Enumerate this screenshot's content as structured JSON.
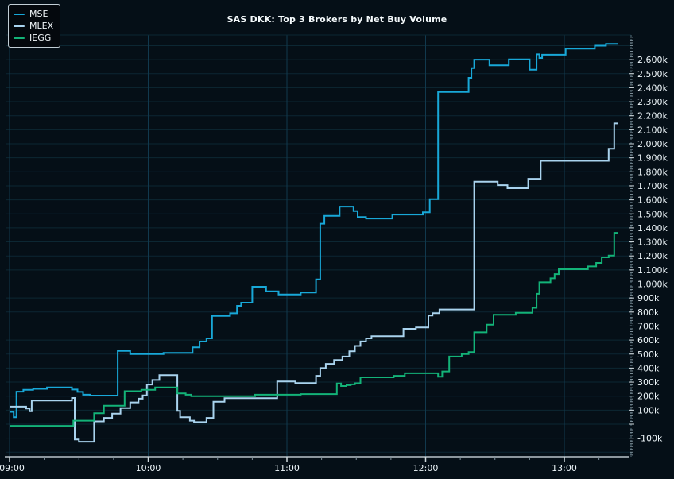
{
  "title": "SAS DKK: Top 3 Brokers by Net Buy Volume",
  "legend": {
    "items": [
      {
        "label": "MSE",
        "color": "#18a8d8"
      },
      {
        "label": "MLEX",
        "color": "#a9d3ee"
      },
      {
        "label": "IEGG",
        "color": "#13b378"
      }
    ]
  },
  "colors": {
    "background": "#050f17",
    "grid_h": "#0c2733",
    "grid_v": "#11394e",
    "axis_line": "#b9c4ca",
    "tick_major": "#cfd8dd",
    "tick_minor": "#7d8f99",
    "tick_label": "#eef6fa",
    "title": "#f5fafc"
  },
  "chart_data": {
    "type": "line",
    "title": "SAS DKK: Top 3 Brokers by Net Buy Volume",
    "step": true,
    "grid": true,
    "legend_position": "upper-left",
    "x_axis": {
      "unit": "time",
      "range_hours": [
        8.97,
        13.45
      ],
      "major_ticks": [
        {
          "t": 9,
          "label": "09:00"
        },
        {
          "t": 10,
          "label": "10:00"
        },
        {
          "t": 11,
          "label": "11:00"
        },
        {
          "t": 12,
          "label": "12:00"
        },
        {
          "t": 13,
          "label": "13:00"
        }
      ],
      "minor_tick_step_hours": 0.25
    },
    "y_axis": {
      "unit": "shares (thousands)",
      "side": "right",
      "min": -240,
      "max": 2775,
      "gridline_step": 100,
      "minor_tick_step": 20,
      "ticks": [
        {
          "value": -100,
          "label": "-100k"
        },
        {
          "value": 0,
          "label": ""
        },
        {
          "value": 100,
          "label": "100k"
        },
        {
          "value": 200,
          "label": "200k"
        },
        {
          "value": 300,
          "label": "300k"
        },
        {
          "value": 400,
          "label": "400k"
        },
        {
          "value": 500,
          "label": "500k"
        },
        {
          "value": 600,
          "label": "600k"
        },
        {
          "value": 700,
          "label": "700k"
        },
        {
          "value": 800,
          "label": "800k"
        },
        {
          "value": 900,
          "label": "900k"
        },
        {
          "value": 1000,
          "label": "1.000k"
        },
        {
          "value": 1100,
          "label": "1.100k"
        },
        {
          "value": 1200,
          "label": "1.200k"
        },
        {
          "value": 1300,
          "label": "1.300k"
        },
        {
          "value": 1400,
          "label": "1.400k"
        },
        {
          "value": 1500,
          "label": "1.500k"
        },
        {
          "value": 1600,
          "label": "1.600k"
        },
        {
          "value": 1700,
          "label": "1.700k"
        },
        {
          "value": 1800,
          "label": "1.800k"
        },
        {
          "value": 1900,
          "label": "1.900k"
        },
        {
          "value": 2000,
          "label": "2.000k"
        },
        {
          "value": 2100,
          "label": "2.100k"
        },
        {
          "value": 2200,
          "label": "2.200k"
        },
        {
          "value": 2300,
          "label": "2.300k"
        },
        {
          "value": 2400,
          "label": "2.400k"
        },
        {
          "value": 2500,
          "label": "2.500k"
        },
        {
          "value": 2600,
          "label": "2.600k"
        }
      ]
    },
    "t_end": 13.385,
    "series": [
      {
        "name": "MSE",
        "color": "#18a8d8",
        "values_unit": "k",
        "points": [
          [
            9.0,
            88
          ],
          [
            9.03,
            50
          ],
          [
            9.05,
            232
          ],
          [
            9.1,
            245
          ],
          [
            9.17,
            252
          ],
          [
            9.27,
            262
          ],
          [
            9.45,
            247
          ],
          [
            9.49,
            230
          ],
          [
            9.53,
            210
          ],
          [
            9.58,
            204
          ],
          [
            9.78,
            523
          ],
          [
            9.87,
            500
          ],
          [
            10.11,
            508
          ],
          [
            10.32,
            548
          ],
          [
            10.37,
            589
          ],
          [
            10.42,
            612
          ],
          [
            10.46,
            772
          ],
          [
            10.59,
            791
          ],
          [
            10.64,
            844
          ],
          [
            10.67,
            867
          ],
          [
            10.75,
            980
          ],
          [
            10.85,
            948
          ],
          [
            10.94,
            925
          ],
          [
            11.1,
            939
          ],
          [
            11.21,
            1033
          ],
          [
            11.24,
            1430
          ],
          [
            11.27,
            1486
          ],
          [
            11.38,
            1552
          ],
          [
            11.48,
            1520
          ],
          [
            11.51,
            1477
          ],
          [
            11.57,
            1467
          ],
          [
            11.76,
            1495
          ],
          [
            11.98,
            1511
          ],
          [
            12.03,
            1605
          ],
          [
            12.09,
            2370
          ],
          [
            12.31,
            2470
          ],
          [
            12.33,
            2540
          ],
          [
            12.35,
            2600
          ],
          [
            12.46,
            2560
          ],
          [
            12.6,
            2602
          ],
          [
            12.75,
            2528
          ],
          [
            12.8,
            2638
          ],
          [
            12.82,
            2612
          ],
          [
            12.84,
            2635
          ],
          [
            13.01,
            2678
          ],
          [
            13.22,
            2700
          ],
          [
            13.3,
            2712
          ]
        ]
      },
      {
        "name": "MLEX",
        "color": "#a9d3ee",
        "values_unit": "k",
        "points": [
          [
            9.0,
            125
          ],
          [
            9.12,
            112
          ],
          [
            9.145,
            92
          ],
          [
            9.16,
            168
          ],
          [
            9.45,
            187
          ],
          [
            9.47,
            -109
          ],
          [
            9.5,
            -125
          ],
          [
            9.61,
            20
          ],
          [
            9.68,
            45
          ],
          [
            9.74,
            75
          ],
          [
            9.8,
            115
          ],
          [
            9.87,
            155
          ],
          [
            9.93,
            182
          ],
          [
            9.96,
            205
          ],
          [
            9.99,
            283
          ],
          [
            10.03,
            315
          ],
          [
            10.08,
            350
          ],
          [
            10.21,
            95
          ],
          [
            10.23,
            50
          ],
          [
            10.3,
            25
          ],
          [
            10.33,
            15
          ],
          [
            10.42,
            45
          ],
          [
            10.47,
            160
          ],
          [
            10.55,
            185
          ],
          [
            10.93,
            305
          ],
          [
            11.06,
            293
          ],
          [
            11.21,
            345
          ],
          [
            11.24,
            400
          ],
          [
            11.28,
            430
          ],
          [
            11.34,
            458
          ],
          [
            11.4,
            482
          ],
          [
            11.45,
            520
          ],
          [
            11.49,
            558
          ],
          [
            11.53,
            590
          ],
          [
            11.57,
            612
          ],
          [
            11.61,
            628
          ],
          [
            11.84,
            680
          ],
          [
            11.93,
            690
          ],
          [
            12.02,
            775
          ],
          [
            12.05,
            792
          ],
          [
            12.1,
            818
          ],
          [
            12.35,
            1730
          ],
          [
            12.52,
            1705
          ],
          [
            12.59,
            1683
          ],
          [
            12.74,
            1750
          ],
          [
            12.83,
            1878
          ],
          [
            13.32,
            1965
          ],
          [
            13.36,
            2145
          ]
        ]
      },
      {
        "name": "IEGG",
        "color": "#13b378",
        "values_unit": "k",
        "points": [
          [
            9.0,
            -12
          ],
          [
            9.46,
            25
          ],
          [
            9.61,
            78
          ],
          [
            9.68,
            132
          ],
          [
            9.83,
            235
          ],
          [
            9.95,
            245
          ],
          [
            10.05,
            262
          ],
          [
            10.21,
            220
          ],
          [
            10.27,
            210
          ],
          [
            10.31,
            200
          ],
          [
            10.77,
            210
          ],
          [
            11.1,
            215
          ],
          [
            11.36,
            290
          ],
          [
            11.39,
            272
          ],
          [
            11.43,
            278
          ],
          [
            11.46,
            284
          ],
          [
            11.49,
            292
          ],
          [
            11.53,
            334
          ],
          [
            11.77,
            345
          ],
          [
            11.85,
            363
          ],
          [
            12.09,
            338
          ],
          [
            12.12,
            376
          ],
          [
            12.17,
            482
          ],
          [
            12.26,
            500
          ],
          [
            12.31,
            514
          ],
          [
            12.35,
            655
          ],
          [
            12.44,
            710
          ],
          [
            12.49,
            780
          ],
          [
            12.65,
            795
          ],
          [
            12.77,
            830
          ],
          [
            12.8,
            930
          ],
          [
            12.82,
            1012
          ],
          [
            12.9,
            1040
          ],
          [
            12.93,
            1070
          ],
          [
            12.96,
            1105
          ],
          [
            13.17,
            1125
          ],
          [
            13.23,
            1150
          ],
          [
            13.27,
            1190
          ],
          [
            13.32,
            1202
          ],
          [
            13.36,
            1365
          ]
        ]
      }
    ]
  }
}
